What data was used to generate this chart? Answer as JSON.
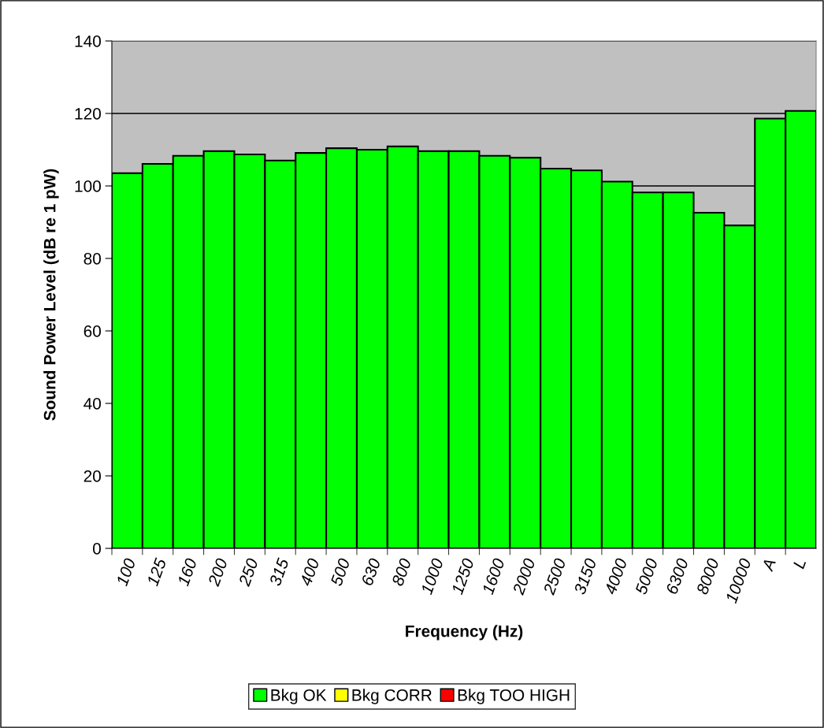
{
  "chart_data": {
    "type": "bar",
    "xlabel": "Frequency (Hz)",
    "ylabel": "Sound Power Level (dB re 1 pW)",
    "categories": [
      "100",
      "125",
      "160",
      "200",
      "250",
      "315",
      "400",
      "500",
      "630",
      "800",
      "1000",
      "1250",
      "1600",
      "2000",
      "2500",
      "3150",
      "4000",
      "5000",
      "6300",
      "8000",
      "10000",
      "A",
      "L"
    ],
    "series": [
      {
        "name": "Bkg OK",
        "color": "#00ff00",
        "values": [
          103.5,
          106.1,
          108.3,
          109.6,
          108.7,
          107.0,
          109.1,
          110.4,
          110.0,
          110.9,
          109.6,
          109.6,
          108.3,
          107.8,
          104.8,
          104.3,
          101.2,
          98.2,
          98.2,
          92.6,
          89.1,
          118.6,
          120.7
        ]
      },
      {
        "name": "Bkg CORR",
        "color": "#ffff00",
        "values": [
          null,
          null,
          null,
          null,
          null,
          null,
          null,
          null,
          null,
          null,
          null,
          null,
          null,
          null,
          null,
          null,
          null,
          null,
          null,
          null,
          null,
          null,
          null
        ]
      },
      {
        "name": "Bkg TOO HIGH",
        "color": "#ff0000",
        "values": [
          null,
          null,
          null,
          null,
          null,
          null,
          null,
          null,
          null,
          null,
          null,
          null,
          null,
          null,
          null,
          null,
          null,
          null,
          null,
          null,
          null,
          null,
          null
        ]
      }
    ],
    "ylim": [
      0,
      140
    ],
    "yticks": [
      0,
      20,
      40,
      60,
      80,
      100,
      120,
      140
    ],
    "grid": "y",
    "legend": "bottom"
  }
}
